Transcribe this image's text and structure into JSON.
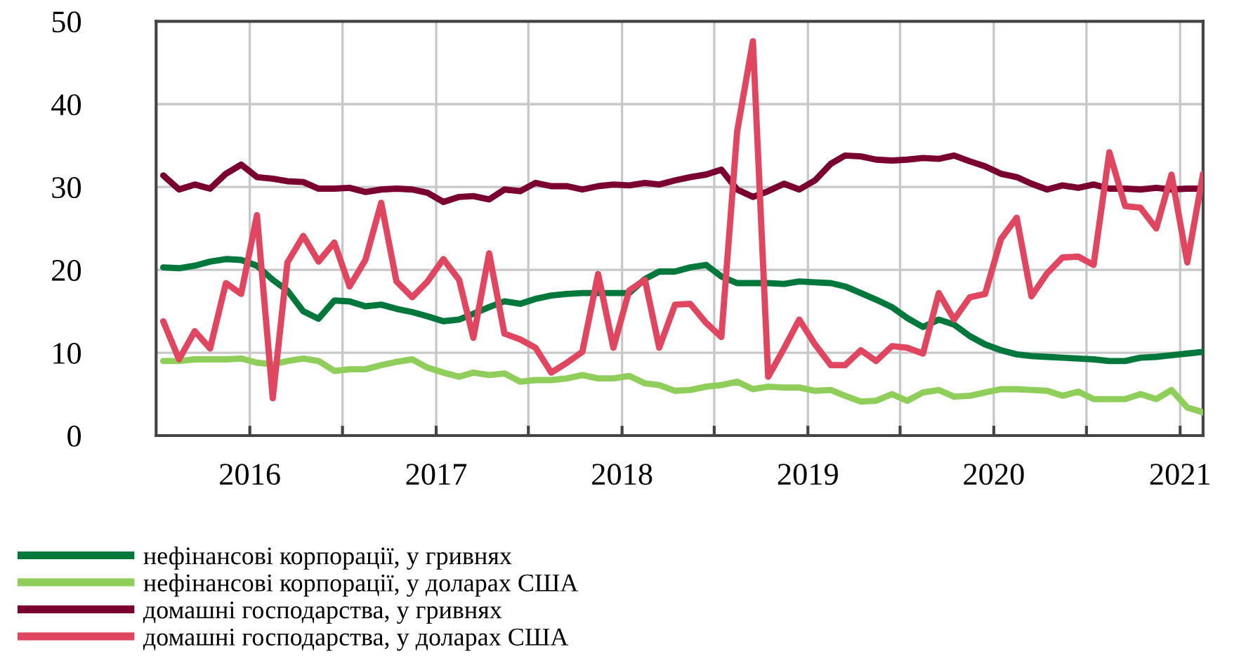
{
  "chart_data": {
    "type": "line",
    "x": [
      "2015-07-15",
      "2015-08-15",
      "2015-09-15",
      "2015-10-15",
      "2015-11-15",
      "2015-12-15",
      "2016-01-15",
      "2016-02-15",
      "2016-03-15",
      "2016-04-15",
      "2016-05-15",
      "2016-06-15",
      "2016-07-15",
      "2016-08-15",
      "2016-09-15",
      "2016-10-15",
      "2016-11-15",
      "2016-12-15",
      "2017-01-15",
      "2017-02-15",
      "2017-03-15",
      "2017-04-15",
      "2017-05-15",
      "2017-06-15",
      "2017-07-15",
      "2017-08-15",
      "2017-09-15",
      "2017-10-15",
      "2017-11-15",
      "2017-12-15",
      "2018-01-15",
      "2018-02-15",
      "2018-03-15",
      "2018-04-15",
      "2018-05-15",
      "2018-06-15",
      "2018-07-15",
      "2018-08-15",
      "2018-09-15",
      "2018-10-15",
      "2018-11-15",
      "2018-12-15",
      "2019-01-15",
      "2019-02-15",
      "2019-03-15",
      "2019-04-15",
      "2019-05-15",
      "2019-06-15",
      "2019-07-15",
      "2019-08-15",
      "2019-09-15",
      "2019-10-15",
      "2019-11-15",
      "2019-12-15",
      "2020-01-15",
      "2020-02-15",
      "2020-03-15",
      "2020-04-15",
      "2020-05-15",
      "2020-06-15",
      "2020-07-15",
      "2020-08-15",
      "2020-09-15",
      "2020-10-15",
      "2020-11-15",
      "2020-12-15",
      "2021-01-15",
      "2021-02-15"
    ],
    "series": [
      {
        "name": "нефінансові корпорації, у гривнях",
        "color": "#00783c",
        "values": [
          20.3,
          20.2,
          20.5,
          21.0,
          21.3,
          21.2,
          20.5,
          18.8,
          17.5,
          15.0,
          14.1,
          16.3,
          16.2,
          15.6,
          15.8,
          15.3,
          14.9,
          14.4,
          13.8,
          14.0,
          14.7,
          15.5,
          16.2,
          15.9,
          16.5,
          16.9,
          17.1,
          17.2,
          17.2,
          17.2,
          17.2,
          18.9,
          19.8,
          19.8,
          20.3,
          20.6,
          19.2,
          18.4,
          18.4,
          18.4,
          18.3,
          18.6,
          18.5,
          18.4,
          18.0,
          17.2,
          16.4,
          15.5,
          14.2,
          13.1,
          14.0,
          13.4,
          12.0,
          11.0,
          10.3,
          9.8,
          9.6,
          9.5,
          9.4,
          9.3,
          9.2,
          9.0,
          9.0,
          9.4,
          9.5,
          9.7,
          9.9,
          10.1
        ]
      },
      {
        "name": "нефінансові корпорації, у доларах США",
        "color": "#8fce5a",
        "values": [
          9.0,
          9.0,
          9.2,
          9.2,
          9.2,
          9.3,
          8.8,
          8.6,
          9.0,
          9.3,
          9.0,
          7.8,
          8.0,
          8.0,
          8.5,
          8.9,
          9.2,
          8.2,
          7.6,
          7.1,
          7.6,
          7.3,
          7.5,
          6.5,
          6.7,
          6.7,
          6.9,
          7.3,
          6.9,
          6.9,
          7.2,
          6.3,
          6.1,
          5.4,
          5.5,
          5.9,
          6.1,
          6.5,
          5.6,
          5.9,
          5.8,
          5.8,
          5.4,
          5.5,
          4.8,
          4.1,
          4.2,
          5.0,
          4.2,
          5.2,
          5.5,
          4.7,
          4.8,
          5.2,
          5.6,
          5.6,
          5.5,
          5.4,
          4.8,
          5.3,
          4.4,
          4.4,
          4.4,
          5.0,
          4.4,
          5.5,
          3.4,
          2.8
        ]
      },
      {
        "name": "домашні господарства, у гривнях",
        "color": "#7a0030",
        "values": [
          31.4,
          29.7,
          30.3,
          29.8,
          31.6,
          32.7,
          31.2,
          31.0,
          30.7,
          30.6,
          29.8,
          29.8,
          29.9,
          29.4,
          29.7,
          29.8,
          29.7,
          29.3,
          28.2,
          28.8,
          28.9,
          28.5,
          29.7,
          29.5,
          30.5,
          30.1,
          30.1,
          29.7,
          30.1,
          30.3,
          30.2,
          30.5,
          30.3,
          30.8,
          31.2,
          31.5,
          32.1,
          29.7,
          28.8,
          29.5,
          30.4,
          29.7,
          30.8,
          32.8,
          33.8,
          33.7,
          33.3,
          33.2,
          33.3,
          33.5,
          33.4,
          33.8,
          33.1,
          32.5,
          31.6,
          31.2,
          30.4,
          29.7,
          30.2,
          29.9,
          30.3,
          29.8,
          29.8,
          29.7,
          29.9,
          29.7,
          29.8,
          29.8
        ]
      },
      {
        "name": "домашні господарства, у доларах США",
        "color": "#e0465f",
        "values": [
          13.8,
          9.2,
          12.6,
          10.5,
          18.4,
          17.1,
          26.6,
          4.5,
          20.9,
          24.1,
          21.0,
          23.3,
          18.0,
          21.2,
          28.1,
          18.6,
          16.7,
          18.6,
          21.3,
          18.8,
          11.8,
          22.0,
          12.3,
          11.6,
          10.6,
          7.6,
          8.8,
          10.1,
          19.5,
          10.6,
          17.5,
          18.8,
          10.6,
          15.8,
          15.9,
          13.6,
          11.9,
          36.7,
          47.6,
          7.1,
          10.5,
          14.0,
          11.0,
          8.5,
          8.5,
          10.3,
          9.0,
          10.8,
          10.6,
          9.9,
          17.2,
          14.0,
          16.7,
          17.1,
          23.7,
          26.3,
          16.8,
          19.6,
          21.5,
          21.6,
          20.6,
          34.2,
          27.7,
          27.5,
          25.0,
          31.5,
          20.9,
          31.6
        ]
      }
    ],
    "xlim": [
      "2015-07-01",
      "2021-02-15"
    ],
    "xticks": [
      {
        "value": "2016-01-01",
        "label": "2016"
      },
      {
        "value": "2016-07-01",
        "label": null
      },
      {
        "value": "2017-01-01",
        "label": "2017"
      },
      {
        "value": "2017-07-01",
        "label": null
      },
      {
        "value": "2018-01-01",
        "label": "2018"
      },
      {
        "value": "2018-07-01",
        "label": null
      },
      {
        "value": "2019-01-01",
        "label": "2019"
      },
      {
        "value": "2019-07-01",
        "label": null
      },
      {
        "value": "2020-01-01",
        "label": "2020"
      },
      {
        "value": "2020-07-01",
        "label": null
      },
      {
        "value": "2021-01-01",
        "label": "2021"
      }
    ],
    "ylim": [
      0,
      50
    ],
    "yticks": [
      0,
      10,
      20,
      30,
      40,
      50
    ],
    "grid": true,
    "legend": "bottom",
    "marker": "none",
    "line_style": "solid"
  }
}
